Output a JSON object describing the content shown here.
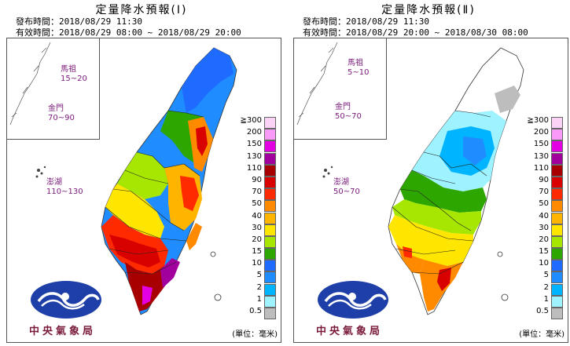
{
  "panels": [
    {
      "title": "定量降水預報(Ⅰ)",
      "issued": "發布時間：2018/08/29 11:30",
      "valid": "有效時間：2018/08/29 08:00 ~ 2018/08/29 20:00",
      "islands": {
        "matsu": {
          "name": "馬祖",
          "range": "15~20"
        },
        "kinmen": {
          "name": "金門",
          "range": "70~90"
        },
        "penghu": {
          "name": "澎湖",
          "range": "110~130"
        }
      }
    },
    {
      "title": "定量降水預報(Ⅱ)",
      "issued": "發布時間：2018/08/29 11:30",
      "valid": "有效時間：2018/08/29 20:00 ~ 2018/08/30 08:00",
      "islands": {
        "matsu": {
          "name": "馬祖",
          "range": "5~10"
        },
        "kinmen": {
          "name": "金門",
          "range": "50~70"
        },
        "penghu": {
          "name": "澎湖",
          "range": "50~70"
        }
      }
    }
  ],
  "legend": {
    "levels": [
      {
        "label": "≧300",
        "color": "#fbd3f6"
      },
      {
        "label": "200",
        "color": "#f99af9"
      },
      {
        "label": "150",
        "color": "#e300e3"
      },
      {
        "label": "130",
        "color": "#a2009d"
      },
      {
        "label": "110",
        "color": "#a80000"
      },
      {
        "label": "90",
        "color": "#d90000"
      },
      {
        "label": "70",
        "color": "#ff2a00"
      },
      {
        "label": "50",
        "color": "#ff8a00"
      },
      {
        "label": "40",
        "color": "#ffb400"
      },
      {
        "label": "30",
        "color": "#ffe600"
      },
      {
        "label": "20",
        "color": "#a6e600"
      },
      {
        "label": "15",
        "color": "#2ea600"
      },
      {
        "label": "10",
        "color": "#1f6bff"
      },
      {
        "label": "5",
        "color": "#1f8dff"
      },
      {
        "label": "2",
        "color": "#00b4ff"
      },
      {
        "label": "1",
        "color": "#9ff2ff"
      },
      {
        "label": "0.5",
        "color": "#bdbdbd"
      }
    ],
    "unit": "(單位：毫米)"
  },
  "logo_text": "中央氣象局"
}
